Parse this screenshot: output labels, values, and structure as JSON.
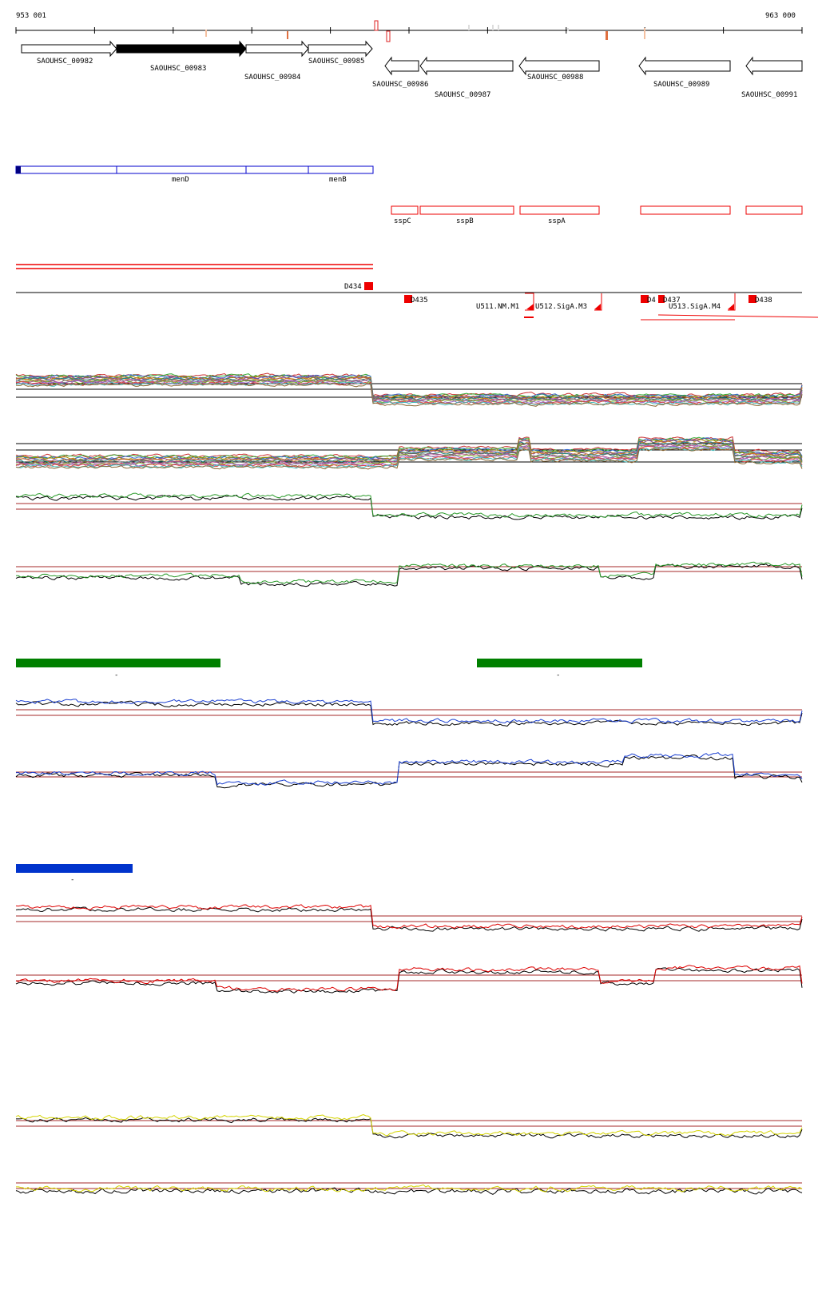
{
  "coords": {
    "start": "953 001",
    "end": "963 000"
  },
  "genes": [
    {
      "id": "SAOUHSC_00982",
      "dir": "fwd",
      "fill": "#ffffff"
    },
    {
      "id": "SAOUHSC_00983",
      "dir": "fwd",
      "fill": "#000000"
    },
    {
      "id": "SAOUHSC_00984",
      "dir": "fwd",
      "fill": "#ffffff"
    },
    {
      "id": "SAOUHSC_00985",
      "dir": "fwd",
      "fill": "#ffffff"
    },
    {
      "id": "SAOUHSC_00986",
      "dir": "rev",
      "fill": "#ffffff"
    },
    {
      "id": "SAOUHSC_00987",
      "dir": "rev",
      "fill": "#ffffff"
    },
    {
      "id": "SAOUHSC_00988",
      "dir": "rev",
      "fill": "#ffffff"
    },
    {
      "id": "SAOUHSC_00989",
      "dir": "rev",
      "fill": "#ffffff"
    },
    {
      "id": "SAOUHSC_00991",
      "dir": "rev",
      "fill": "#ffffff"
    }
  ],
  "blue_gene_labels": [
    "menD",
    "menB"
  ],
  "red_gene_labels": [
    "sspC",
    "sspB",
    "sspA"
  ],
  "segment_labels": [
    "D434",
    "D435",
    "U511.NM.M1",
    "U512.SigA.M3",
    "D4",
    "D437",
    "U513.SigA.M4",
    "D438"
  ],
  "bars": [
    {
      "label": "-",
      "color": "#008000"
    },
    {
      "label": "-",
      "color": "#008000"
    },
    {
      "label": "-",
      "color": "#0033cc"
    }
  ],
  "colors": {
    "fwd_line": "#000000",
    "feature_blue": "#0000cc",
    "feature_red": "#ee0000",
    "reference_line": "#a52a2a",
    "series_green": "#2a9a2a",
    "series_blue": "#1a3fd0",
    "series_red": "#dd0000",
    "series_yellow": "#d4d400",
    "series_black": "#000000"
  }
}
